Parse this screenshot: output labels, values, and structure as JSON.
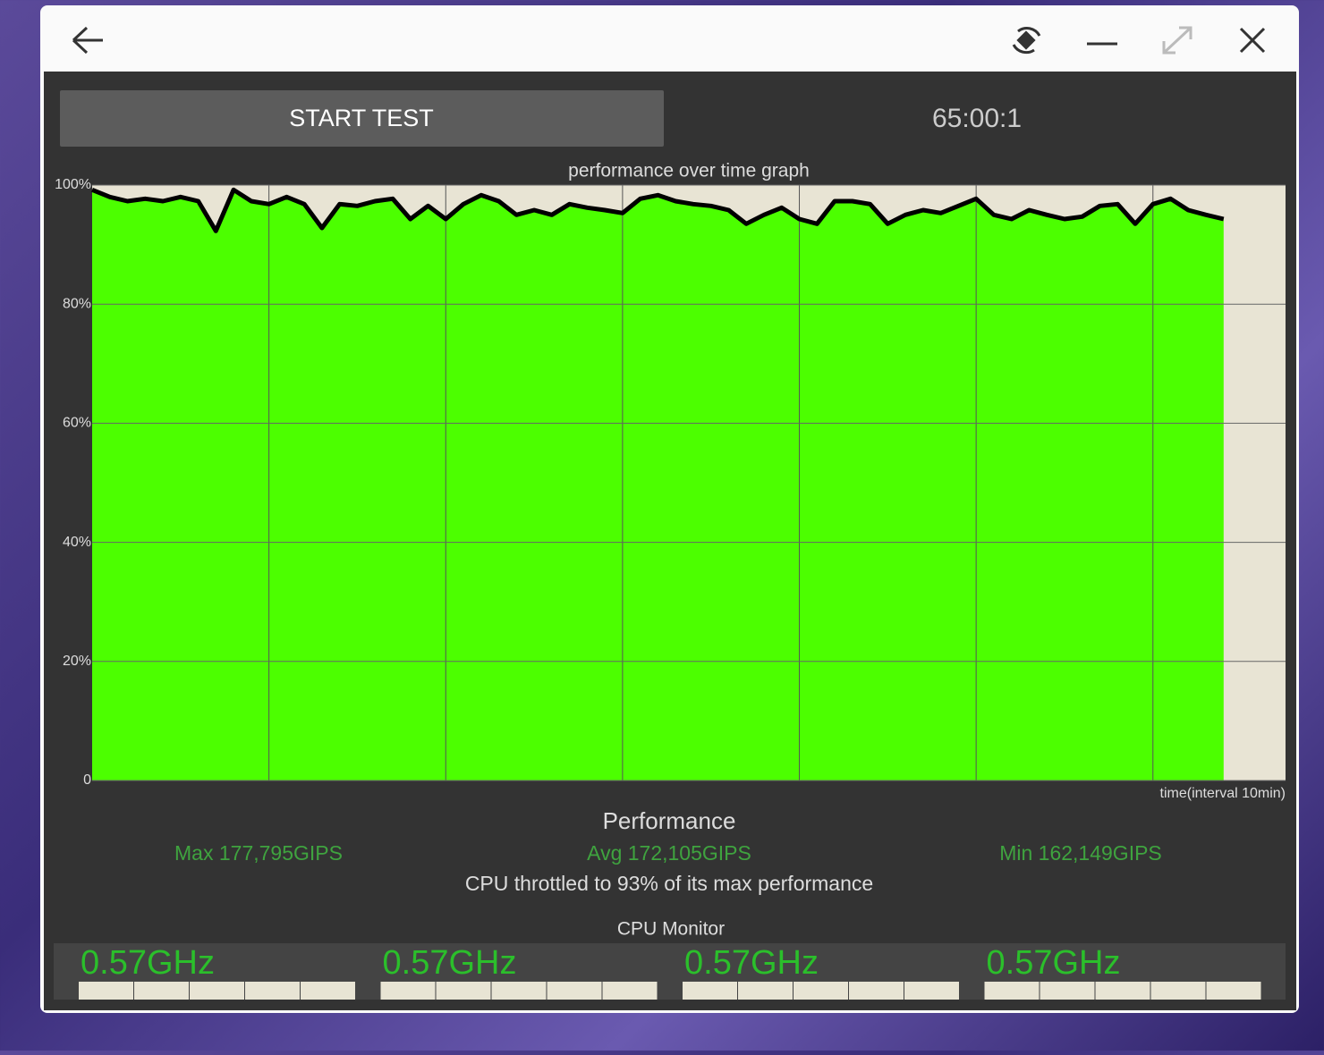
{
  "controls": {
    "button": "START TEST",
    "timer": "65:00:1"
  },
  "chart_data": {
    "type": "area",
    "title": "performance over time graph",
    "x_label": "time(interval 10min)",
    "color": "#000000",
    "fill_color": "#4cff00",
    "background": "#e8e4d4",
    "grid": true,
    "xlim": [
      0,
      67.5
    ],
    "xticks": [
      10,
      20,
      30,
      40,
      50,
      60
    ],
    "ylim": [
      0,
      100
    ],
    "yticks": [
      0,
      {
        "value": 20,
        "label": "20%"
      },
      {
        "value": 40,
        "label": "40%"
      },
      {
        "value": 60,
        "label": "60%"
      },
      {
        "value": 80,
        "label": "80%"
      },
      {
        "value": 100,
        "label": "100%"
      }
    ],
    "x": [
      0,
      1,
      2,
      3,
      4,
      5,
      6,
      7,
      8,
      9,
      10,
      11,
      12,
      13,
      14,
      15,
      16,
      17,
      18,
      19,
      20,
      21,
      22,
      23,
      24,
      25,
      26,
      27,
      28,
      29,
      30,
      31,
      32,
      33,
      34,
      35,
      36,
      37,
      38,
      39,
      40,
      41,
      42,
      43,
      44,
      45,
      46,
      47,
      48,
      49,
      50,
      51,
      52,
      53,
      54,
      55,
      56,
      57,
      58,
      59,
      60,
      61,
      62,
      63,
      64
    ],
    "values": [
      99.2,
      98.0,
      97.3,
      97.7,
      97.3,
      98.0,
      97.3,
      92.3,
      99.2,
      97.3,
      96.8,
      98.0,
      96.8,
      92.8,
      96.8,
      96.5,
      97.3,
      97.7,
      94.3,
      96.5,
      94.3,
      96.8,
      98.3,
      97.3,
      95.0,
      95.8,
      95.0,
      96.8,
      96.2,
      95.8,
      95.3,
      97.7,
      98.3,
      97.3,
      96.8,
      96.5,
      95.8,
      93.5,
      95.0,
      96.2,
      94.3,
      93.5,
      97.3,
      97.3,
      96.8,
      93.5,
      95.0,
      95.8,
      95.3,
      96.5,
      97.7,
      95.0,
      94.3,
      95.8,
      95.0,
      94.3,
      94.7,
      96.5,
      96.8,
      93.5,
      96.8,
      97.7,
      95.8,
      95.0,
      94.3
    ]
  },
  "performance": {
    "title": "Performance",
    "max": "Max 177,795GIPS",
    "avg": "Avg 172,105GIPS",
    "min": "Min 162,149GIPS",
    "summary": "CPU throttled to 93% of its max performance"
  },
  "cpu_monitor": {
    "title": "CPU Monitor",
    "cores": [
      "0.57GHz",
      "0.57GHz",
      "0.57GHz",
      "0.57GHz"
    ]
  }
}
